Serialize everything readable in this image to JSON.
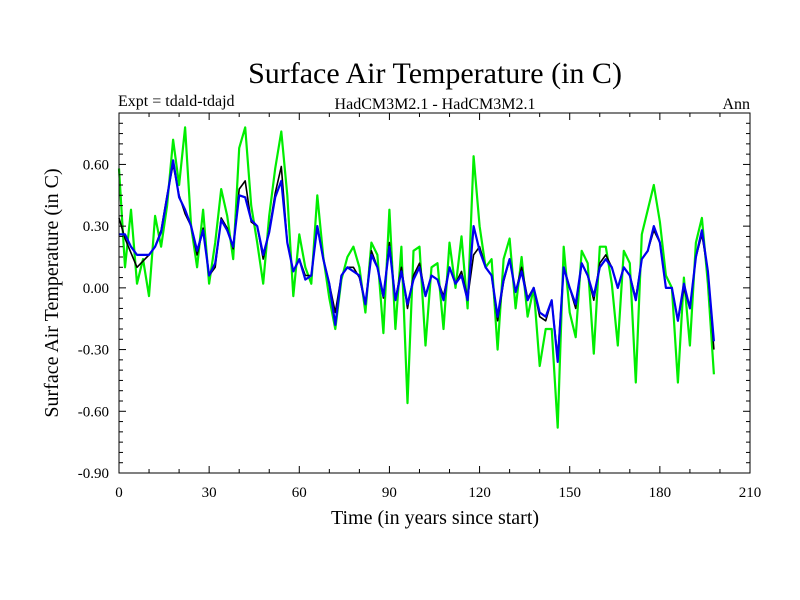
{
  "chart_data": {
    "type": "line",
    "title": "Surface Air Temperature (in C)",
    "subtitle_left": "Expt = tdald-tdajd",
    "subtitle_center": "HadCM3M2.1 - HadCM3M2.1",
    "subtitle_right": "Ann",
    "xlabel": "Time (in years since start)",
    "ylabel": "Surface Air Temperature (in C)",
    "xlim": [
      0,
      210
    ],
    "ylim": [
      -0.9,
      0.85
    ],
    "xticks": [
      0,
      30,
      60,
      90,
      120,
      150,
      180,
      210
    ],
    "xtick_labels": [
      "0",
      "30",
      "60",
      "90",
      "120",
      "150",
      "180",
      "210"
    ],
    "yticks": [
      -0.9,
      -0.6,
      -0.3,
      0.0,
      0.3,
      0.6
    ],
    "ytick_labels": [
      "-0.90",
      "-0.60",
      "-0.30",
      "0.00",
      "0.30",
      "0.60"
    ],
    "series": [
      {
        "name": "black",
        "color": "#000000",
        "x": [
          0,
          2,
          4,
          6,
          8,
          10,
          12,
          14,
          16,
          18,
          20,
          22,
          24,
          26,
          28,
          30,
          32,
          34,
          36,
          38,
          40,
          42,
          44,
          46,
          48,
          50,
          52,
          54,
          56,
          58,
          60,
          62,
          64,
          66,
          68,
          70,
          72,
          74,
          76,
          78,
          80,
          82,
          84,
          86,
          88,
          90,
          92,
          94,
          96,
          98,
          100,
          102,
          104,
          106,
          108,
          110,
          112,
          114,
          116,
          118,
          120,
          122,
          124,
          126,
          128,
          130,
          132,
          134,
          136,
          138,
          140,
          142,
          144,
          146,
          148,
          150,
          152,
          154,
          156,
          158,
          160,
          162,
          164,
          166,
          168,
          170,
          172,
          174,
          176,
          178,
          180,
          182,
          184,
          186,
          188,
          190,
          192,
          194,
          196,
          198
        ],
        "y": [
          0.34,
          0.24,
          0.17,
          0.1,
          0.13,
          0.16,
          0.2,
          0.28,
          0.45,
          0.6,
          0.45,
          0.36,
          0.3,
          0.16,
          0.29,
          0.06,
          0.1,
          0.34,
          0.29,
          0.19,
          0.48,
          0.52,
          0.32,
          0.3,
          0.14,
          0.28,
          0.46,
          0.59,
          0.22,
          0.08,
          0.14,
          0.06,
          0.06,
          0.3,
          0.14,
          0.02,
          -0.12,
          0.06,
          0.1,
          0.1,
          0.05,
          -0.08,
          0.18,
          0.1,
          -0.05,
          0.22,
          -0.06,
          0.1,
          -0.1,
          0.06,
          0.12,
          -0.04,
          0.06,
          0.04,
          -0.04,
          0.1,
          0.02,
          0.08,
          -0.05,
          0.16,
          0.2,
          0.1,
          0.06,
          -0.16,
          0.03,
          0.14,
          -0.02,
          0.1,
          -0.05,
          0.0,
          -0.14,
          -0.16,
          -0.06,
          -0.34,
          0.1,
          0.0,
          -0.1,
          0.12,
          0.06,
          -0.06,
          0.12,
          0.16,
          0.1,
          0.0,
          0.1,
          0.06,
          -0.05,
          0.14,
          0.18,
          0.28,
          0.22,
          0.0,
          0.0,
          -0.16,
          0.0,
          -0.1,
          0.15,
          0.26,
          0.08,
          -0.3
        ]
      },
      {
        "name": "green",
        "color": "#00ee00",
        "x": [
          0,
          2,
          4,
          6,
          8,
          10,
          12,
          14,
          16,
          18,
          20,
          22,
          24,
          26,
          28,
          30,
          32,
          34,
          36,
          38,
          40,
          42,
          44,
          46,
          48,
          50,
          52,
          54,
          56,
          58,
          60,
          62,
          64,
          66,
          68,
          70,
          72,
          74,
          76,
          78,
          80,
          82,
          84,
          86,
          88,
          90,
          92,
          94,
          96,
          98,
          100,
          102,
          104,
          106,
          108,
          110,
          112,
          114,
          116,
          118,
          120,
          122,
          124,
          126,
          128,
          130,
          132,
          134,
          136,
          138,
          140,
          142,
          144,
          146,
          148,
          150,
          152,
          154,
          156,
          158,
          160,
          162,
          164,
          166,
          168,
          170,
          172,
          174,
          176,
          178,
          180,
          182,
          184,
          186,
          188,
          190,
          192,
          194,
          196,
          198
        ],
        "y": [
          0.58,
          0.1,
          0.38,
          0.02,
          0.14,
          -0.04,
          0.35,
          0.2,
          0.4,
          0.72,
          0.5,
          0.78,
          0.3,
          0.1,
          0.38,
          0.02,
          0.22,
          0.48,
          0.35,
          0.14,
          0.68,
          0.78,
          0.4,
          0.22,
          0.02,
          0.35,
          0.58,
          0.76,
          0.45,
          -0.04,
          0.26,
          0.1,
          0.02,
          0.45,
          0.15,
          -0.05,
          -0.2,
          0.04,
          0.15,
          0.2,
          0.1,
          -0.12,
          0.22,
          0.16,
          -0.22,
          0.38,
          -0.2,
          0.2,
          -0.56,
          0.18,
          0.2,
          -0.28,
          0.1,
          0.12,
          -0.2,
          0.22,
          0.0,
          0.25,
          -0.1,
          0.64,
          0.3,
          0.1,
          0.14,
          -0.3,
          0.14,
          0.24,
          -0.1,
          0.15,
          -0.14,
          0.0,
          -0.38,
          -0.2,
          -0.2,
          -0.68,
          0.2,
          -0.12,
          -0.24,
          0.18,
          0.12,
          -0.32,
          0.2,
          0.2,
          0.02,
          -0.28,
          0.18,
          0.12,
          -0.46,
          0.26,
          0.38,
          0.5,
          0.32,
          0.06,
          0.0,
          -0.46,
          0.05,
          -0.28,
          0.22,
          0.34,
          0.02,
          -0.42
        ]
      },
      {
        "name": "blue",
        "color": "#0000ee",
        "x": [
          0,
          2,
          4,
          6,
          8,
          10,
          12,
          14,
          16,
          18,
          20,
          22,
          24,
          26,
          28,
          30,
          32,
          34,
          36,
          38,
          40,
          42,
          44,
          46,
          48,
          50,
          52,
          54,
          56,
          58,
          60,
          62,
          64,
          66,
          68,
          70,
          72,
          74,
          76,
          78,
          80,
          82,
          84,
          86,
          88,
          90,
          92,
          94,
          96,
          98,
          100,
          102,
          104,
          106,
          108,
          110,
          112,
          114,
          116,
          118,
          120,
          122,
          124,
          126,
          128,
          130,
          132,
          134,
          136,
          138,
          140,
          142,
          144,
          146,
          148,
          150,
          152,
          154,
          156,
          158,
          160,
          162,
          164,
          166,
          168,
          170,
          172,
          174,
          176,
          178,
          180,
          182,
          184,
          186,
          188,
          190,
          192,
          194,
          196,
          198
        ],
        "y": [
          0.26,
          0.26,
          0.2,
          0.16,
          0.16,
          0.16,
          0.2,
          0.27,
          0.44,
          0.62,
          0.44,
          0.38,
          0.3,
          0.18,
          0.28,
          0.06,
          0.12,
          0.33,
          0.28,
          0.2,
          0.45,
          0.44,
          0.33,
          0.3,
          0.16,
          0.27,
          0.44,
          0.52,
          0.22,
          0.08,
          0.14,
          0.04,
          0.06,
          0.3,
          0.14,
          0.02,
          -0.18,
          0.06,
          0.1,
          0.08,
          0.06,
          -0.08,
          0.16,
          0.1,
          -0.04,
          0.2,
          -0.06,
          0.08,
          -0.08,
          0.04,
          0.1,
          -0.04,
          0.06,
          0.04,
          -0.06,
          0.1,
          0.02,
          0.06,
          -0.06,
          0.3,
          0.18,
          0.1,
          0.06,
          -0.14,
          0.04,
          0.14,
          -0.02,
          0.08,
          -0.06,
          0.0,
          -0.12,
          -0.14,
          -0.06,
          -0.36,
          0.1,
          0.0,
          -0.08,
          0.12,
          0.06,
          -0.04,
          0.1,
          0.14,
          0.1,
          0.0,
          0.1,
          0.06,
          -0.06,
          0.14,
          0.18,
          0.3,
          0.22,
          0.0,
          0.0,
          -0.16,
          0.02,
          -0.1,
          0.15,
          0.28,
          0.08,
          -0.26
        ]
      }
    ]
  }
}
